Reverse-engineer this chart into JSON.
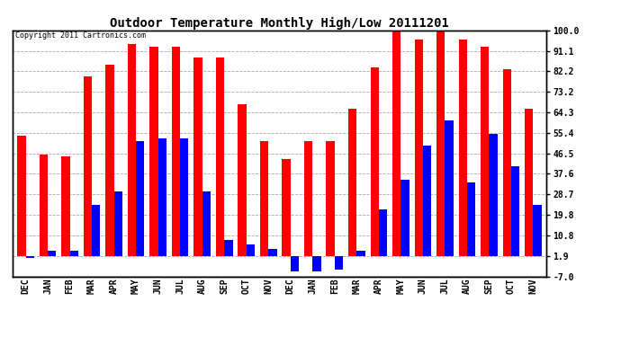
{
  "title": "Outdoor Temperature Monthly High/Low 20111201",
  "copyright": "Copyright 2011 Cartronics.com",
  "months": [
    "DEC",
    "JAN",
    "FEB",
    "MAR",
    "APR",
    "MAY",
    "JUN",
    "JUL",
    "AUG",
    "SEP",
    "OCT",
    "NOV",
    "DEC",
    "JAN",
    "FEB",
    "MAR",
    "APR",
    "MAY",
    "JUN",
    "JUL",
    "AUG",
    "SEP",
    "OCT",
    "NOV"
  ],
  "highs": [
    54,
    46,
    45,
    80,
    85,
    94,
    93,
    93,
    88,
    88,
    68,
    52,
    44,
    52,
    52,
    66,
    84,
    100,
    96,
    101,
    96,
    93,
    83,
    66
  ],
  "lows": [
    1,
    4,
    4,
    24,
    30,
    52,
    53,
    53,
    30,
    9,
    7,
    5,
    -5,
    -5,
    -4,
    4,
    22,
    35,
    50,
    61,
    34,
    55,
    41,
    24
  ],
  "yticks": [
    100.0,
    91.1,
    82.2,
    73.2,
    64.3,
    55.4,
    46.5,
    37.6,
    28.7,
    19.8,
    10.8,
    1.9,
    -7.0
  ],
  "high_color": "#FF0000",
  "low_color": "#0000FF",
  "bg_color": "#FFFFFF",
  "grid_color": "#AAAAAA",
  "bar_width": 0.38,
  "figwidth": 6.9,
  "figheight": 3.75,
  "dpi": 100
}
